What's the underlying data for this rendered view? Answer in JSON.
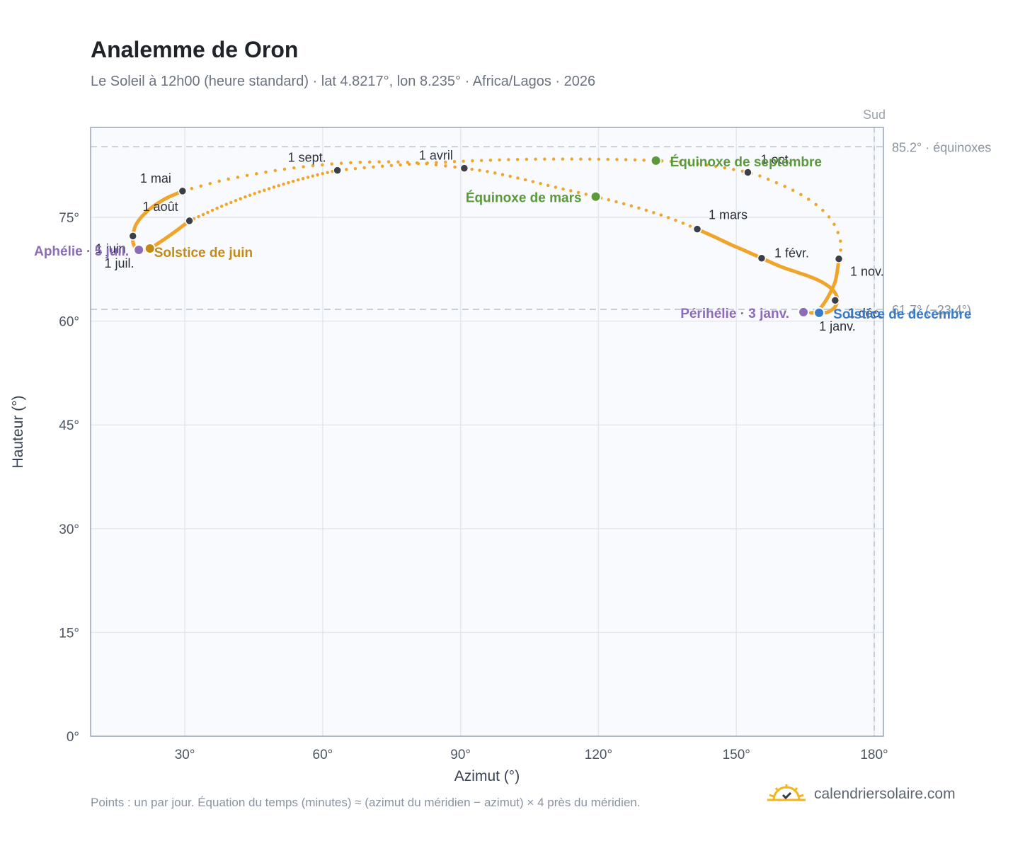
{
  "title": "Analemme de Oron",
  "subtitle": "Le Soleil à 12h00 (heure standard) · lat 4.8217°, lon 8.235° · Africa/Lagos · 2026",
  "footnote": "Points : un par jour. Équation du temps (minutes) ≈ (azimut du méridien − azimut) × 4 près du méridien.",
  "brand": {
    "name": "calendriersolaire.com",
    "icon": "sun-logo-icon"
  },
  "colors": {
    "analemma": "#f0a52a",
    "month_marker": "#3a3f4a",
    "equinox": "#5a9a3a",
    "june_solstice": "#c48a14",
    "december_solstice": "#3a7bc8",
    "perihelion_aphelion": "#8c6bb8",
    "plot_bg": "#f8fafd",
    "grid": "#e3e8ef",
    "reference_line": "#b6c2cf"
  },
  "chart_data": {
    "type": "scatter",
    "title": "Analemme de Oron",
    "xlabel": "Azimut (°)",
    "ylabel": "Hauteur (°)",
    "xlim": [
      9.5,
      182
    ],
    "ylim": [
      0,
      88
    ],
    "xticks": [
      30,
      60,
      90,
      120,
      150,
      180
    ],
    "yticks": [
      0,
      15,
      30,
      45,
      60,
      75
    ],
    "x_tick_labels": [
      "30°",
      "60°",
      "90°",
      "120°",
      "150°",
      "180°"
    ],
    "y_tick_labels": [
      "0°",
      "15°",
      "30°",
      "45°",
      "60°",
      "75°"
    ],
    "grid": true,
    "meridian": {
      "azimuth": 180,
      "label": "Sud"
    },
    "reference_lines": [
      {
        "altitude": 85.2,
        "label": "85.2° · équinoxes"
      },
      {
        "altitude": 61.7,
        "label": "61.7° (−23.4°)"
      }
    ],
    "path_series": [
      {
        "days": [
          1,
          32
        ],
        "az": [
          168.0,
          168.8,
          170.2,
          171.5,
          172.0,
          171.0,
          169.0,
          166.5,
          163.5,
          160.0,
          157.5,
          155.5
        ],
        "alt": [
          61.3,
          61.2,
          61.4,
          62.1,
          63.2,
          64.5,
          65.5,
          66.3,
          67.0,
          67.8,
          68.5,
          69.1
        ],
        "dotted": false
      },
      {
        "days": [
          32,
          60
        ],
        "az": [
          155.5,
          152.5,
          149.0,
          145.5,
          141.5
        ],
        "alt": [
          69.1,
          70.0,
          71.0,
          72.1,
          73.3
        ],
        "dotted": false
      },
      {
        "days": [
          60,
          91
        ],
        "az": [
          141.5,
          135.5,
          128.0,
          119.4,
          111.0,
          103.0,
          96.0,
          90.8
        ],
        "alt": [
          73.3,
          74.9,
          76.5,
          78.0,
          79.3,
          80.6,
          81.6,
          82.1
        ],
        "dotted": true
      },
      {
        "days": [
          91,
          121
        ],
        "az": [
          90.8,
          80.0,
          70.0,
          60.0,
          50.0,
          40.0,
          35.0,
          29.5
        ],
        "alt": [
          82.1,
          82.9,
          83.0,
          82.6,
          81.8,
          80.6,
          79.8,
          78.8
        ],
        "dotted": true
      },
      {
        "days": [
          121,
          172
        ],
        "az": [
          29.5,
          25.5,
          22.0,
          19.5,
          18.7,
          18.9,
          19.9
        ],
        "alt": [
          78.8,
          77.6,
          76.0,
          74.1,
          72.3,
          71.0,
          70.4
        ],
        "dotted": false
      },
      {
        "days": [
          172,
          213
        ],
        "az": [
          19.9,
          21.0,
          22.4,
          25.0,
          28.0,
          31.0
        ],
        "alt": [
          70.4,
          70.3,
          70.5,
          71.6,
          73.0,
          74.5
        ],
        "dotted": false
      },
      {
        "days": [
          213,
          244
        ],
        "az": [
          31.0,
          38.0,
          45.0,
          52.0,
          58.0,
          63.2
        ],
        "alt": [
          74.5,
          76.6,
          78.4,
          79.9,
          81.0,
          81.8
        ],
        "dotted": true
      },
      {
        "days": [
          244,
          305
        ],
        "az": [
          63.2,
          75.0,
          90.0,
          105.0,
          120.0,
          132.5,
          142.0,
          152.5,
          158.0,
          163.5,
          168.0,
          171.0,
          172.5,
          172.7,
          172.3
        ],
        "alt": [
          81.8,
          82.5,
          83.1,
          83.4,
          83.4,
          83.2,
          82.7,
          81.5,
          80.2,
          78.5,
          76.5,
          74.3,
          72.0,
          70.4,
          69.0
        ],
        "dotted": true
      },
      {
        "days": [
          305,
          365
        ],
        "az": [
          172.3,
          172.0,
          171.5,
          170.5,
          169.5,
          168.3,
          167.0,
          166.2,
          167.0,
          168.0
        ],
        "alt": [
          69.0,
          67.4,
          65.7,
          64.2,
          63.0,
          61.9,
          61.3,
          61.2,
          61.2,
          61.3
        ],
        "dotted": false
      }
    ],
    "month_markers": [
      {
        "label": "1 janv.",
        "az": 168.0,
        "alt": 61.3
      },
      {
        "label": "1 févr.",
        "az": 155.5,
        "alt": 69.1
      },
      {
        "label": "1 mars",
        "az": 141.5,
        "alt": 73.3
      },
      {
        "label": "1 avril",
        "az": 90.8,
        "alt": 82.1
      },
      {
        "label": "1 mai",
        "az": 29.5,
        "alt": 78.8
      },
      {
        "label": "1 juin",
        "az": 18.7,
        "alt": 72.3
      },
      {
        "label": "1 juil.",
        "az": 19.9,
        "alt": 70.4
      },
      {
        "label": "1 août",
        "az": 31.0,
        "alt": 74.5
      },
      {
        "label": "1 sept.",
        "az": 63.2,
        "alt": 81.8
      },
      {
        "label": "1 oct.",
        "az": 152.5,
        "alt": 81.5
      },
      {
        "label": "1 nov.",
        "az": 172.3,
        "alt": 69.0
      },
      {
        "label": "1 déc.",
        "az": 171.5,
        "alt": 63.0
      }
    ],
    "events": [
      {
        "label": "Équinoxe de mars",
        "az": 119.4,
        "alt": 78.0,
        "kind": "equinox"
      },
      {
        "label": "Équinoxe de septembre",
        "az": 132.5,
        "alt": 83.2,
        "kind": "equinox"
      },
      {
        "label": "Solstice de juin",
        "az": 22.4,
        "alt": 70.5,
        "kind": "june_solstice"
      },
      {
        "label": "Solstice de décembre",
        "az": 168.0,
        "alt": 61.2,
        "kind": "december_solstice"
      },
      {
        "label": "Aphélie · 5 juil.",
        "az": 20.0,
        "alt": 70.3,
        "kind": "perihelion_aphelion"
      },
      {
        "label": "Périhélie · 3 janv.",
        "az": 164.6,
        "alt": 61.3,
        "kind": "perihelion_aphelion"
      }
    ]
  }
}
